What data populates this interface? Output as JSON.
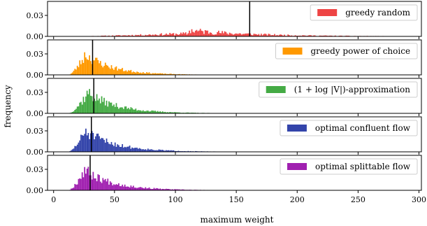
{
  "chart_data": {
    "type": "bar",
    "subtype": "stacked-histograms",
    "xlabel": "maximum weight",
    "ylabel": "frequency",
    "xlim": [
      -5,
      302
    ],
    "x_ticks": [
      0,
      50,
      100,
      150,
      200,
      250,
      300
    ],
    "x_tick_labels": [
      "0",
      "50",
      "100",
      "150",
      "200",
      "250",
      "300"
    ],
    "ylim": [
      0,
      0.05
    ],
    "y_ticks": [
      0.0,
      0.03
    ],
    "y_tick_labels": [
      "0.00",
      "0.03"
    ],
    "bin_width": 1,
    "legend_position": "upper right",
    "grid": false,
    "panels": [
      {
        "name": "greedy random",
        "color": "#ee4444",
        "vline": 161,
        "x_range": [
          10,
          298
        ],
        "rise_end": 110,
        "peak": 0.004,
        "peak_at": 150,
        "decay_rate": 0.02,
        "jitter": 0.6,
        "seed": 11
      },
      {
        "name": "greedy power of choice",
        "color": "#ff9900",
        "vline": 32,
        "x_range": [
          12,
          298
        ],
        "rise_end": 26,
        "peak": 0.03,
        "peak_at": 25,
        "decay_rate": 0.045,
        "jitter": 0.35,
        "seed": 23
      },
      {
        "name": "(1 + log |V|)-approximation",
        "color": "#44aa44",
        "vline": 33,
        "x_range": [
          12,
          298
        ],
        "rise_end": 28,
        "peak": 0.03,
        "peak_at": 27,
        "decay_rate": 0.042,
        "jitter": 0.35,
        "seed": 37
      },
      {
        "name": "optimal confluent flow",
        "color": "#3344aa",
        "vline": 31,
        "x_range": [
          12,
          298
        ],
        "rise_end": 26,
        "peak": 0.03,
        "peak_at": 25,
        "decay_rate": 0.04,
        "jitter": 0.35,
        "seed": 51
      },
      {
        "name": "optimal splittable flow",
        "color": "#a020b0",
        "vline": 30,
        "x_range": [
          12,
          298
        ],
        "rise_end": 25,
        "peak": 0.03,
        "peak_at": 24,
        "decay_rate": 0.042,
        "jitter": 0.35,
        "seed": 67
      }
    ]
  }
}
